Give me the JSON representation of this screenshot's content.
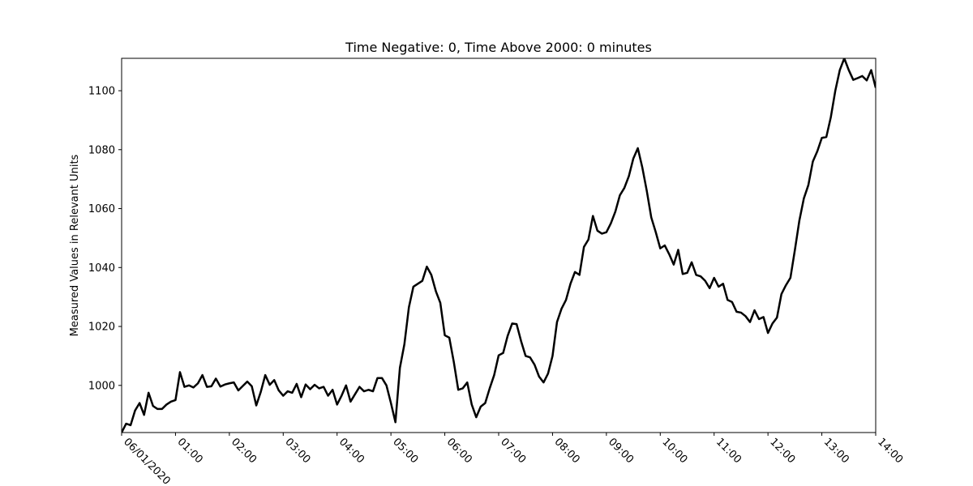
{
  "chart_data": {
    "type": "line",
    "title": "Time Negative: 0, Time Above 2000: 0 minutes",
    "xlabel": "",
    "ylabel": "Measured Values in Relevant Units",
    "x_tick_labels": [
      "06/01/2020",
      "01:00",
      "02:00",
      "03:00",
      "04:00",
      "05:00",
      "06:00",
      "07:00",
      "08:00",
      "09:00",
      "10:00",
      "11:00",
      "12:00",
      "13:00",
      "14:00"
    ],
    "y_ticks": [
      1000,
      1020,
      1040,
      1060,
      1080,
      1100
    ],
    "xlim": [
      "2020-06-01 00:00",
      "2020-06-01 14:00"
    ],
    "ylim": [
      984,
      1111
    ],
    "grid": false,
    "line_color": "#000000",
    "series": [
      {
        "x": [
          "00:00",
          "00:05",
          "00:10",
          "00:15",
          "00:20",
          "00:25",
          "00:30",
          "00:35",
          "00:40",
          "00:45",
          "00:50",
          "00:55",
          "01:00",
          "01:05",
          "01:10",
          "01:15",
          "01:20",
          "01:25",
          "01:30",
          "01:35",
          "01:40",
          "01:45",
          "01:50",
          "01:55",
          "02:00",
          "02:05",
          "02:10",
          "02:15",
          "02:20",
          "02:25",
          "02:30",
          "02:35",
          "02:40",
          "02:45",
          "02:50",
          "02:55",
          "03:00",
          "03:05",
          "03:10",
          "03:15",
          "03:20",
          "03:25",
          "03:30",
          "03:35",
          "03:40",
          "03:45",
          "03:50",
          "03:55",
          "04:00",
          "04:05",
          "04:10",
          "04:15",
          "04:20",
          "04:25",
          "04:30",
          "04:35",
          "04:40",
          "04:45",
          "04:50",
          "04:55",
          "05:00",
          "05:05",
          "05:10",
          "05:15",
          "05:20",
          "05:25",
          "05:30",
          "05:35",
          "05:40",
          "05:45",
          "05:50",
          "05:55",
          "06:00",
          "06:05",
          "06:10",
          "06:15",
          "06:20",
          "06:25",
          "06:30",
          "06:35",
          "06:40",
          "06:45",
          "06:50",
          "06:55",
          "07:00",
          "07:05",
          "07:10",
          "07:15",
          "07:20",
          "07:25",
          "07:30",
          "07:35",
          "07:40",
          "07:45",
          "07:50",
          "07:55",
          "08:00",
          "08:05",
          "08:10",
          "08:15",
          "08:20",
          "08:25",
          "08:30",
          "08:35",
          "08:40",
          "08:45",
          "08:50",
          "08:55",
          "09:00",
          "09:05",
          "09:10",
          "09:15",
          "09:20",
          "09:25",
          "09:30",
          "09:35",
          "09:40",
          "09:45",
          "09:50",
          "09:55",
          "10:00",
          "10:05",
          "10:10",
          "10:15",
          "10:20",
          "10:25",
          "10:30",
          "10:35",
          "10:40",
          "10:45",
          "10:50",
          "10:55",
          "11:00",
          "11:05",
          "11:10",
          "11:15",
          "11:20",
          "11:25",
          "11:30",
          "11:35",
          "11:40",
          "11:45",
          "11:50",
          "11:55",
          "12:00",
          "12:05",
          "12:10",
          "12:15",
          "12:20",
          "12:25",
          "12:30",
          "12:35",
          "12:40",
          "12:45",
          "12:50",
          "12:55",
          "13:00",
          "13:05",
          "13:10",
          "13:15",
          "13:20",
          "13:25",
          "13:30",
          "13:35",
          "13:40",
          "13:45",
          "13:50",
          "13:55",
          "14:00"
        ],
        "values": [
          984,
          987,
          986.5,
          991.5,
          994,
          990,
          997.5,
          993,
          992,
          992,
          993.5,
          994.5,
          995,
          1004.5,
          999.5,
          1000,
          999.3,
          1000.7,
          1003.5,
          999.5,
          999.7,
          1002.3,
          999.6,
          1000.3,
          1000.7,
          1001,
          998.3,
          999.8,
          1001.3,
          999.7,
          993.2,
          997.8,
          1003.5,
          1000.2,
          1001.8,
          998.3,
          996.5,
          998,
          997.5,
          1000.5,
          996,
          1000.3,
          998.7,
          1000.2,
          999,
          999.5,
          996.5,
          998.5,
          993.5,
          996.5,
          1000,
          994.5,
          997,
          999.5,
          998,
          998.5,
          998,
          1002.5,
          1002.5,
          1000,
          994,
          987.5,
          1006,
          1014,
          1026.5,
          1033.5,
          1034.5,
          1035.5,
          1040.3,
          1037.5,
          1032,
          1028,
          1017,
          1016.2,
          1008,
          998.5,
          999,
          1001,
          993.5,
          989.2,
          992.8,
          994,
          999,
          1003.5,
          1010.2,
          1011,
          1016.8,
          1021,
          1020.8,
          1015,
          1010,
          1009.5,
          1007,
          1003,
          1001,
          1004,
          1010,
          1021.5,
          1026,
          1029,
          1034.5,
          1038.5,
          1037.5,
          1047,
          1049.5,
          1057.5,
          1052.5,
          1051.5,
          1052,
          1055,
          1059,
          1064.5,
          1067,
          1071,
          1077,
          1080.5,
          1074,
          1066,
          1057,
          1052,
          1046.5,
          1047.5,
          1044.5,
          1041,
          1046,
          1037.8,
          1038.2,
          1041.8,
          1037.5,
          1037,
          1035.5,
          1033,
          1036.5,
          1033.5,
          1034.5,
          1029,
          1028.3,
          1025,
          1024.7,
          1023.5,
          1021.5,
          1025.5,
          1022.5,
          1023.2,
          1017.8,
          1021,
          1023,
          1031,
          1034,
          1036.5,
          1046,
          1056,
          1063.5,
          1068,
          1076,
          1079.5,
          1084,
          1084.3,
          1091,
          1100,
          1107,
          1111,
          1107,
          1103.7,
          1104.3,
          1105,
          1103.5,
          1107,
          1101
        ]
      }
    ]
  }
}
